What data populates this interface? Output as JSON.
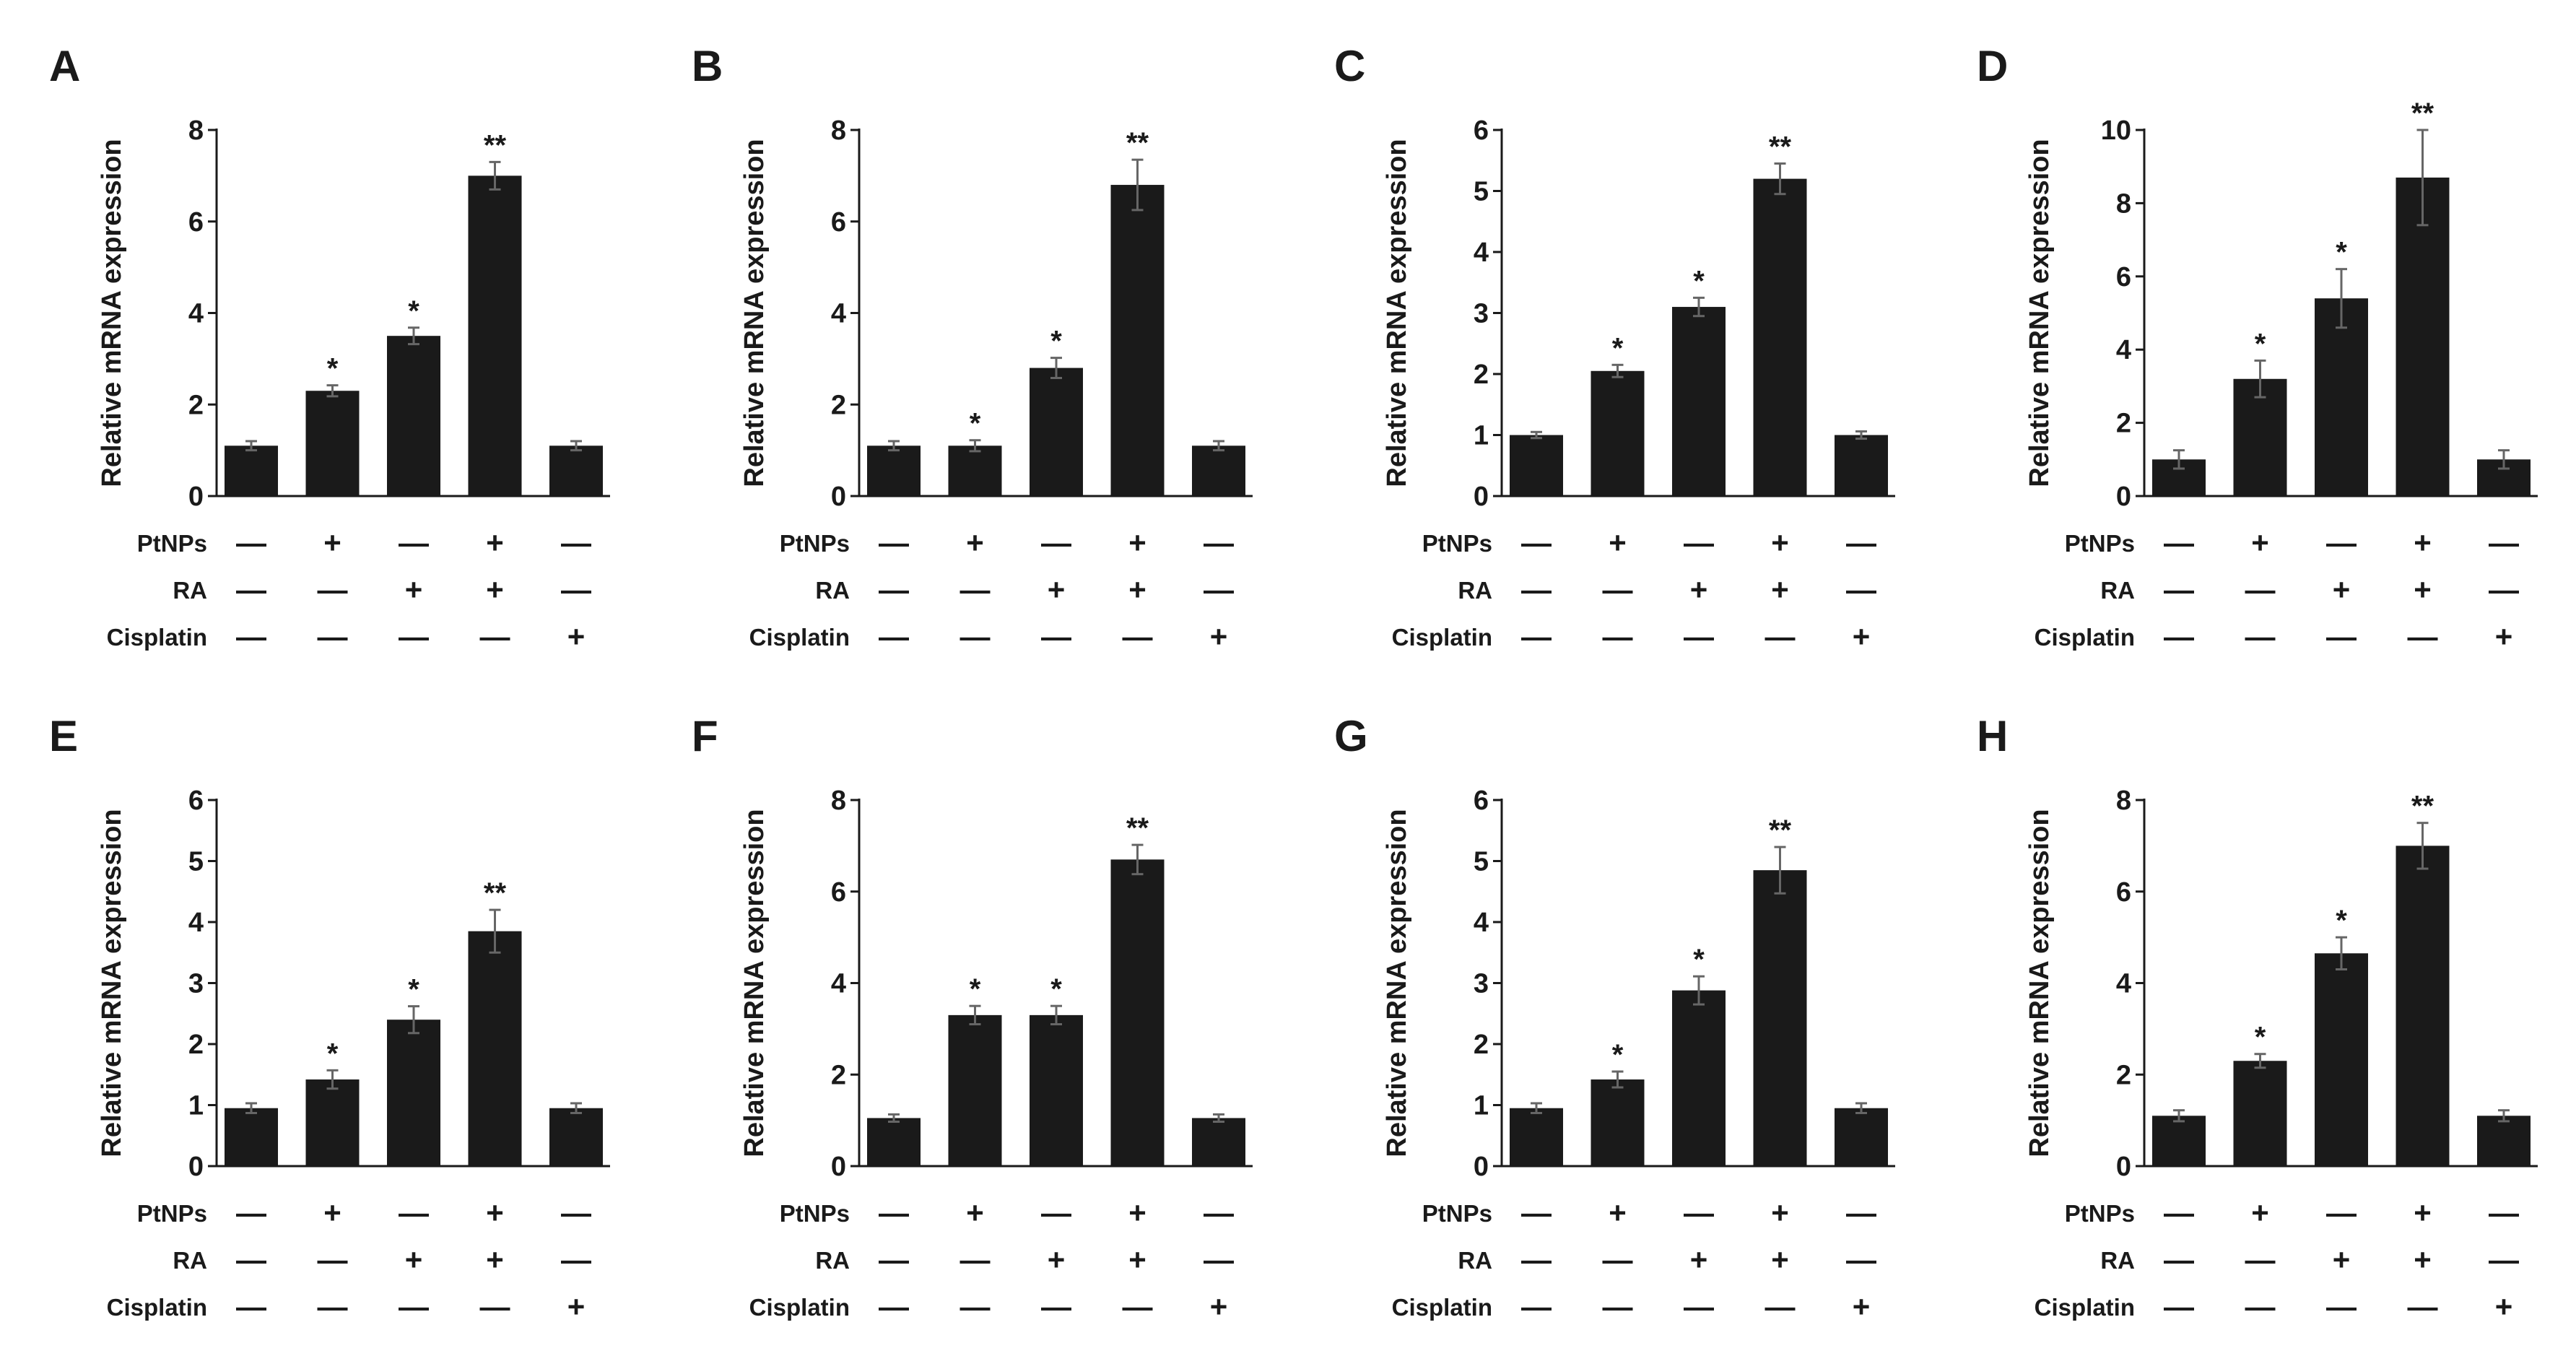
{
  "figure": {
    "row_labels": [
      "PtNPs",
      "RA",
      "Cisplatin"
    ],
    "plus_symbol": "+",
    "minus_symbol": "—",
    "bar_color": "#1a1a1a",
    "error_color": "#666666",
    "panel_letters": [
      "A",
      "B",
      "C",
      "D",
      "E",
      "F",
      "G",
      "H"
    ]
  },
  "chart_data": [
    {
      "type": "bar",
      "panel": "A",
      "ylabel": "Relative mRNA expression",
      "ylim": [
        0,
        8
      ],
      "yticks": [
        0,
        2,
        4,
        6,
        8
      ],
      "values": [
        1.1,
        2.3,
        3.5,
        7.0,
        1.1
      ],
      "errors": [
        0.1,
        0.12,
        0.18,
        0.3,
        0.1
      ],
      "significance": [
        "",
        "*",
        "*",
        "**",
        ""
      ],
      "conditions": {
        "PtNPs": [
          "—",
          "+",
          "—",
          "+",
          "—"
        ],
        "RA": [
          "—",
          "—",
          "+",
          "+",
          "—"
        ],
        "Cisplatin": [
          "—",
          "—",
          "—",
          "—",
          "+"
        ]
      }
    },
    {
      "type": "bar",
      "panel": "B",
      "ylabel": "Relative mRNA expression",
      "ylim": [
        0,
        8
      ],
      "yticks": [
        0,
        2,
        4,
        6,
        8
      ],
      "values": [
        1.1,
        1.1,
        2.8,
        6.8,
        1.1
      ],
      "errors": [
        0.1,
        0.12,
        0.22,
        0.55,
        0.1
      ],
      "significance": [
        "",
        "*",
        "*",
        "**",
        ""
      ],
      "conditions": {
        "PtNPs": [
          "—",
          "+",
          "—",
          "+",
          "—"
        ],
        "RA": [
          "—",
          "—",
          "+",
          "+",
          "—"
        ],
        "Cisplatin": [
          "—",
          "—",
          "—",
          "—",
          "+"
        ]
      }
    },
    {
      "type": "bar",
      "panel": "C",
      "ylabel": "Relative mRNA expression",
      "ylim": [
        0,
        6
      ],
      "yticks": [
        0,
        1,
        2,
        3,
        4,
        5,
        6
      ],
      "values": [
        1.0,
        2.05,
        3.1,
        5.2,
        1.0
      ],
      "errors": [
        0.05,
        0.1,
        0.15,
        0.25,
        0.06
      ],
      "significance": [
        "",
        "*",
        "*",
        "**",
        ""
      ],
      "conditions": {
        "PtNPs": [
          "—",
          "+",
          "—",
          "+",
          "—"
        ],
        "RA": [
          "—",
          "—",
          "+",
          "+",
          "—"
        ],
        "Cisplatin": [
          "—",
          "—",
          "—",
          "—",
          "+"
        ]
      }
    },
    {
      "type": "bar",
      "panel": "D",
      "ylabel": "Relative mRNA expression",
      "ylim": [
        0,
        10
      ],
      "yticks": [
        0,
        2,
        4,
        6,
        8,
        10
      ],
      "values": [
        1.0,
        3.2,
        5.4,
        8.7,
        1.0
      ],
      "errors": [
        0.25,
        0.5,
        0.8,
        1.3,
        0.25
      ],
      "significance": [
        "",
        "*",
        "*",
        "**",
        ""
      ],
      "conditions": {
        "PtNPs": [
          "—",
          "+",
          "—",
          "+",
          "—"
        ],
        "RA": [
          "—",
          "—",
          "+",
          "+",
          "—"
        ],
        "Cisplatin": [
          "—",
          "—",
          "—",
          "—",
          "+"
        ]
      }
    },
    {
      "type": "bar",
      "panel": "E",
      "ylabel": "Relative mRNA expression",
      "ylim": [
        0,
        6
      ],
      "yticks": [
        0,
        1,
        2,
        3,
        4,
        5,
        6
      ],
      "values": [
        0.95,
        1.42,
        2.4,
        3.85,
        0.95
      ],
      "errors": [
        0.08,
        0.15,
        0.22,
        0.35,
        0.08
      ],
      "significance": [
        "",
        "*",
        "*",
        "**",
        ""
      ],
      "conditions": {
        "PtNPs": [
          "—",
          "+",
          "—",
          "+",
          "—"
        ],
        "RA": [
          "—",
          "—",
          "+",
          "+",
          "—"
        ],
        "Cisplatin": [
          "—",
          "—",
          "—",
          "—",
          "+"
        ]
      }
    },
    {
      "type": "bar",
      "panel": "F",
      "ylabel": "Relative mRNA expression",
      "ylim": [
        0,
        8
      ],
      "yticks": [
        0,
        2,
        4,
        6,
        8
      ],
      "values": [
        1.05,
        3.3,
        3.3,
        6.7,
        1.05
      ],
      "errors": [
        0.08,
        0.2,
        0.2,
        0.32,
        0.08
      ],
      "significance": [
        "",
        "*",
        "*",
        "**",
        ""
      ],
      "conditions": {
        "PtNPs": [
          "—",
          "+",
          "—",
          "+",
          "—"
        ],
        "RA": [
          "—",
          "—",
          "+",
          "+",
          "—"
        ],
        "Cisplatin": [
          "—",
          "—",
          "—",
          "—",
          "+"
        ]
      }
    },
    {
      "type": "bar",
      "panel": "G",
      "ylabel": "Relative mRNA expression",
      "ylim": [
        0,
        6
      ],
      "yticks": [
        0,
        1,
        2,
        3,
        4,
        5,
        6
      ],
      "values": [
        0.95,
        1.42,
        2.88,
        4.85,
        0.95
      ],
      "errors": [
        0.08,
        0.13,
        0.23,
        0.38,
        0.08
      ],
      "significance": [
        "",
        "*",
        "*",
        "**",
        ""
      ],
      "conditions": {
        "PtNPs": [
          "—",
          "+",
          "—",
          "+",
          "—"
        ],
        "RA": [
          "—",
          "—",
          "+",
          "+",
          "—"
        ],
        "Cisplatin": [
          "—",
          "—",
          "—",
          "—",
          "+"
        ]
      }
    },
    {
      "type": "bar",
      "panel": "H",
      "ylabel": "Relative mRNA expression",
      "ylim": [
        0,
        8
      ],
      "yticks": [
        0,
        2,
        4,
        6,
        8
      ],
      "values": [
        1.1,
        2.3,
        4.65,
        7.0,
        1.1
      ],
      "errors": [
        0.12,
        0.15,
        0.35,
        0.5,
        0.12
      ],
      "significance": [
        "",
        "*",
        "*",
        "**",
        ""
      ],
      "conditions": {
        "PtNPs": [
          "—",
          "+",
          "—",
          "+",
          "—"
        ],
        "RA": [
          "—",
          "—",
          "+",
          "+",
          "—"
        ],
        "Cisplatin": [
          "—",
          "—",
          "—",
          "—",
          "+"
        ]
      }
    }
  ]
}
